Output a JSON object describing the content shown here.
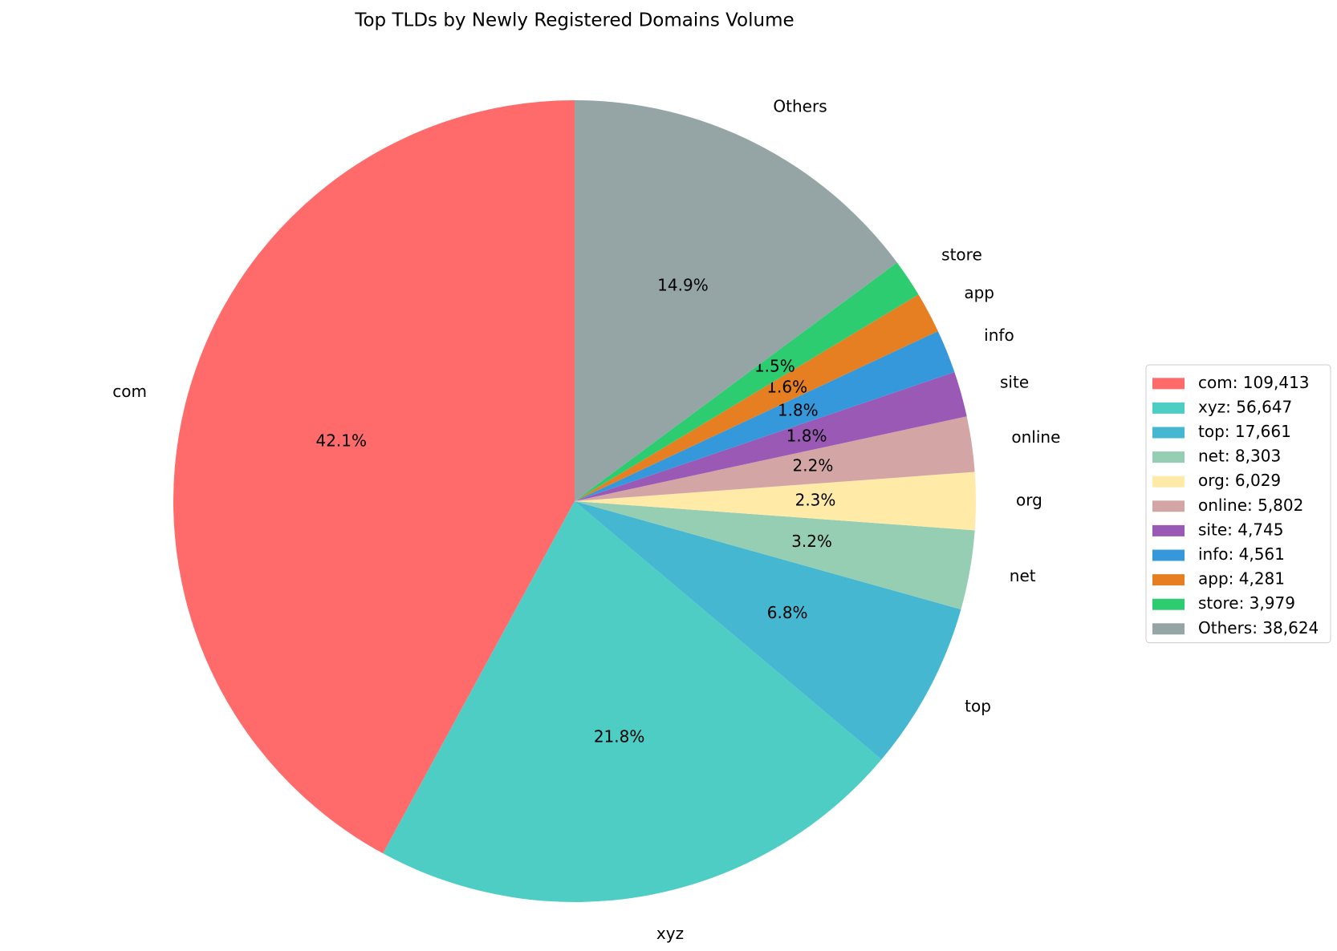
{
  "chart_data": {
    "type": "pie",
    "title": "Top TLDs by Newly Registered Domains Volume",
    "categories": [
      "com",
      "xyz",
      "top",
      "net",
      "org",
      "online",
      "site",
      "info",
      "app",
      "store",
      "Others"
    ],
    "values": [
      109413,
      56647,
      17661,
      8303,
      6029,
      5802,
      4745,
      4561,
      4281,
      3979,
      38624
    ],
    "value_labels": [
      "42.1%",
      "21.8%",
      "6.8%",
      "3.2%",
      "2.3%",
      "2.2%",
      "1.8%",
      "1.8%",
      "1.6%",
      "1.5%",
      "14.9%"
    ],
    "legend_labels": [
      "com: 109,413",
      "xyz: 56,647",
      "top: 17,661",
      "net: 8,303",
      "org: 6,029",
      "online: 5,802",
      "site: 4,745",
      "info: 4,561",
      "app: 4,281",
      "store: 3,979",
      "Others: 38,624"
    ],
    "colors": [
      "#ff6b6b",
      "#4ecdc4",
      "#45b7d1",
      "#96ceb4",
      "#ffeaa7",
      "#d4a5a5",
      "#9b59b6",
      "#3498db",
      "#e67e22",
      "#2ecc71",
      "#95a5a6"
    ],
    "start_angle": 90,
    "legend": "right"
  }
}
